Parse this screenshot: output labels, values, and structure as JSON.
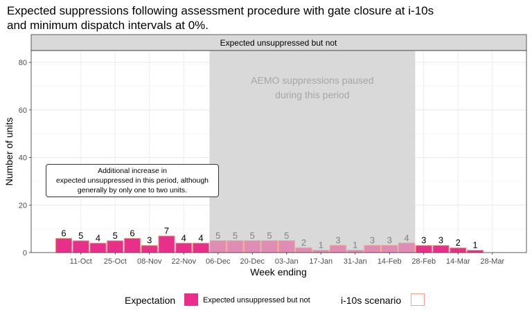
{
  "chart_data": {
    "type": "bar",
    "title": "Expected suppressions following assessment procedure with gate closure at i-10s\nand minimum dispatch intervals at 0%.",
    "panel_strip": "Expected unsuppressed but not",
    "xlabel": "Week ending",
    "ylabel": "Number of units",
    "ylim": [
      0,
      85
    ],
    "y_ticks": [
      "0",
      "20",
      "40",
      "60",
      "80"
    ],
    "y_tick_values": [
      0,
      20,
      40,
      60,
      80
    ],
    "x_tick_labels": [
      "11-Oct",
      "25-Oct",
      "08-Nov",
      "22-Nov",
      "06-Dec",
      "20-Dec",
      "03-Jan",
      "17-Jan",
      "31-Jan",
      "14-Feb",
      "28-Feb",
      "14-Mar",
      "28-Mar"
    ],
    "categories": [
      "04-Oct",
      "11-Oct",
      "18-Oct",
      "25-Oct",
      "01-Nov",
      "08-Nov",
      "15-Nov",
      "22-Nov",
      "29-Nov",
      "06-Dec",
      "13-Dec",
      "20-Dec",
      "27-Dec",
      "03-Jan",
      "10-Jan",
      "17-Jan",
      "24-Jan",
      "31-Jan",
      "07-Feb",
      "14-Feb",
      "21-Feb",
      "28-Feb",
      "07-Mar",
      "14-Mar",
      "21-Mar",
      "28-Mar"
    ],
    "series": [
      {
        "name": "Expected unsuppressed but not",
        "color": "#e8308a",
        "values": [
          6,
          5,
          4,
          5,
          6,
          3,
          7,
          4,
          4,
          5,
          5,
          5,
          5,
          5,
          2,
          1,
          3,
          1,
          3,
          3,
          4,
          3,
          3,
          2,
          1,
          0
        ]
      },
      {
        "name": "i-10s scenario",
        "color": "#f4a093",
        "values": [
          6,
          5,
          4,
          5,
          6,
          3,
          7,
          4,
          4,
          5,
          5,
          5,
          5,
          5,
          2,
          1,
          3,
          1,
          3,
          3,
          4,
          3,
          3,
          2,
          1,
          0
        ]
      }
    ],
    "data_labels": [
      "6",
      "5",
      "4",
      "5",
      "6",
      "3",
      "7",
      "4",
      "4",
      "5",
      "5",
      "5",
      "5",
      "5",
      "2",
      "1",
      "3",
      "1",
      "3",
      "3",
      "4",
      "3",
      "3",
      "2",
      "1",
      ""
    ],
    "shaded_period": {
      "start": "06-Dec",
      "end": "21-Feb",
      "label": "AEMO suppressions paused\nduring this period",
      "color": "#d9d9d9"
    },
    "annotation": "Additional increase in\nexpected unsuppressed in this period, although\ngenerally by only one to two units.",
    "grid": true
  },
  "legend": {
    "fill_title": "Expectation",
    "fill_label": "Expected unsuppressed but not",
    "outline_title": "i-10s scenario",
    "fill_color": "#e8308a",
    "outline_color": "#f4a093"
  }
}
